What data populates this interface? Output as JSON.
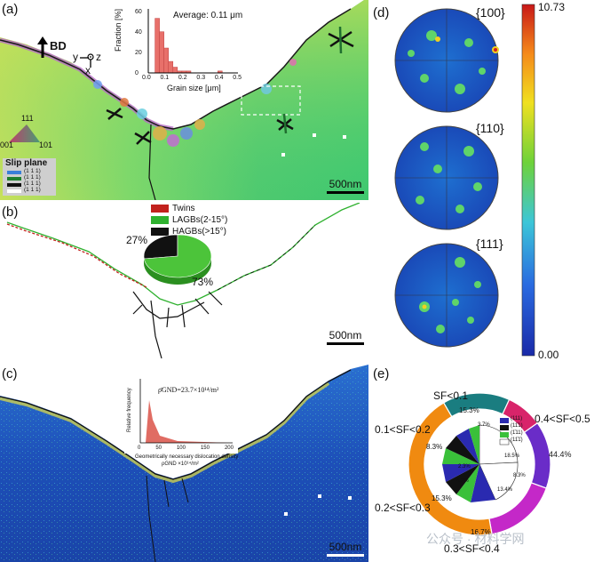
{
  "panels": {
    "a": {
      "label": "(a)",
      "bd": "BD",
      "axes": {
        "y": "y",
        "z": "z",
        "x": "x"
      },
      "inset": {
        "ylabel": "Fraction [%]",
        "xlabel": "Grain size [μm]",
        "annotation": "Average: 0.11 μm",
        "yticks": [
          "0",
          "20",
          "40",
          "60"
        ],
        "xticks": [
          "0.0",
          "0.1",
          "0.2",
          "0.3",
          "0.4",
          "0.5"
        ]
      },
      "ipf": {
        "top": "111",
        "left": "001",
        "right": "101"
      },
      "slip_title": "Slip plane",
      "slip_planes": [
        "(1 1 1)",
        "(1 1 1)",
        "(1 1 1)",
        "(1 1 1)"
      ],
      "scalebar": "500nm"
    },
    "b": {
      "label": "(b)",
      "legend": [
        "Twins",
        "LAGBs(2-15°)",
        "HAGBs(>15°)"
      ],
      "pie_pct": [
        "27%",
        "73%"
      ],
      "scalebar": "500nm"
    },
    "c": {
      "label": "(c)",
      "inset_eq": "ρ̄GND=23.7×10¹⁴/m²",
      "inset_ylabel": "Relative frequency",
      "inset_xlabel": "Geometrically necessary dislocation density",
      "inset_xunit": "ρGND ×10¹⁴/m²",
      "inset_xticks": [
        "0",
        "50",
        "100",
        "150",
        "200"
      ],
      "scalebar": "500nm"
    },
    "d": {
      "label": "(d)",
      "poles": [
        "{100}",
        "{110}",
        "{111}"
      ],
      "colorbar_max": "10.73",
      "colorbar_min": "0.00"
    },
    "e": {
      "label": "(e)",
      "categories": [
        "SF<0.1",
        "0.1<SF<0.2",
        "0.2<SF<0.3",
        "0.3<SF<0.4",
        "0.4<SF<0.5"
      ],
      "outer_pcts": [
        "15.3%",
        "8.3%",
        "15.3%",
        "16.7%",
        "44.4%"
      ],
      "inner_legend": [
        "(111)",
        "(11̄1)",
        "(1̄11)",
        "(11̄1̄)"
      ],
      "inner_pcts": [
        "18.5%",
        "8.3%",
        "13.4%",
        "3.7%",
        "2.3%",
        "4.2%"
      ]
    }
  },
  "watermark": "公众号 · 材料学网",
  "colors": {
    "hagb": "#000000",
    "lagb": "#2fb12f",
    "twin": "#c2221d",
    "ebsd_green": "#55cf62"
  },
  "chart_data": [
    {
      "type": "bar",
      "title": "",
      "xlabel": "Grain size [μm]",
      "ylabel": "Fraction [%]",
      "categories": [
        "0.05",
        "0.075",
        "0.10",
        "0.125",
        "0.15",
        "0.175",
        "0.20",
        "0.225",
        "0.40"
      ],
      "values": [
        57,
        43,
        26,
        12,
        6,
        2,
        2,
        2,
        2
      ],
      "xlim": [
        0,
        0.5
      ],
      "ylim": [
        0,
        65
      ]
    },
    {
      "type": "pie",
      "categories": [
        "HAGBs(>15°)",
        "LAGBs(2-15°)"
      ],
      "values": [
        27,
        73
      ]
    },
    {
      "type": "pie",
      "categories": [
        "SF<0.1",
        "0.1<SF<0.2",
        "0.2<SF<0.3",
        "0.3<SF<0.4",
        "0.4<SF<0.5"
      ],
      "values": [
        15.3,
        8.3,
        15.3,
        16.7,
        44.4
      ]
    }
  ]
}
